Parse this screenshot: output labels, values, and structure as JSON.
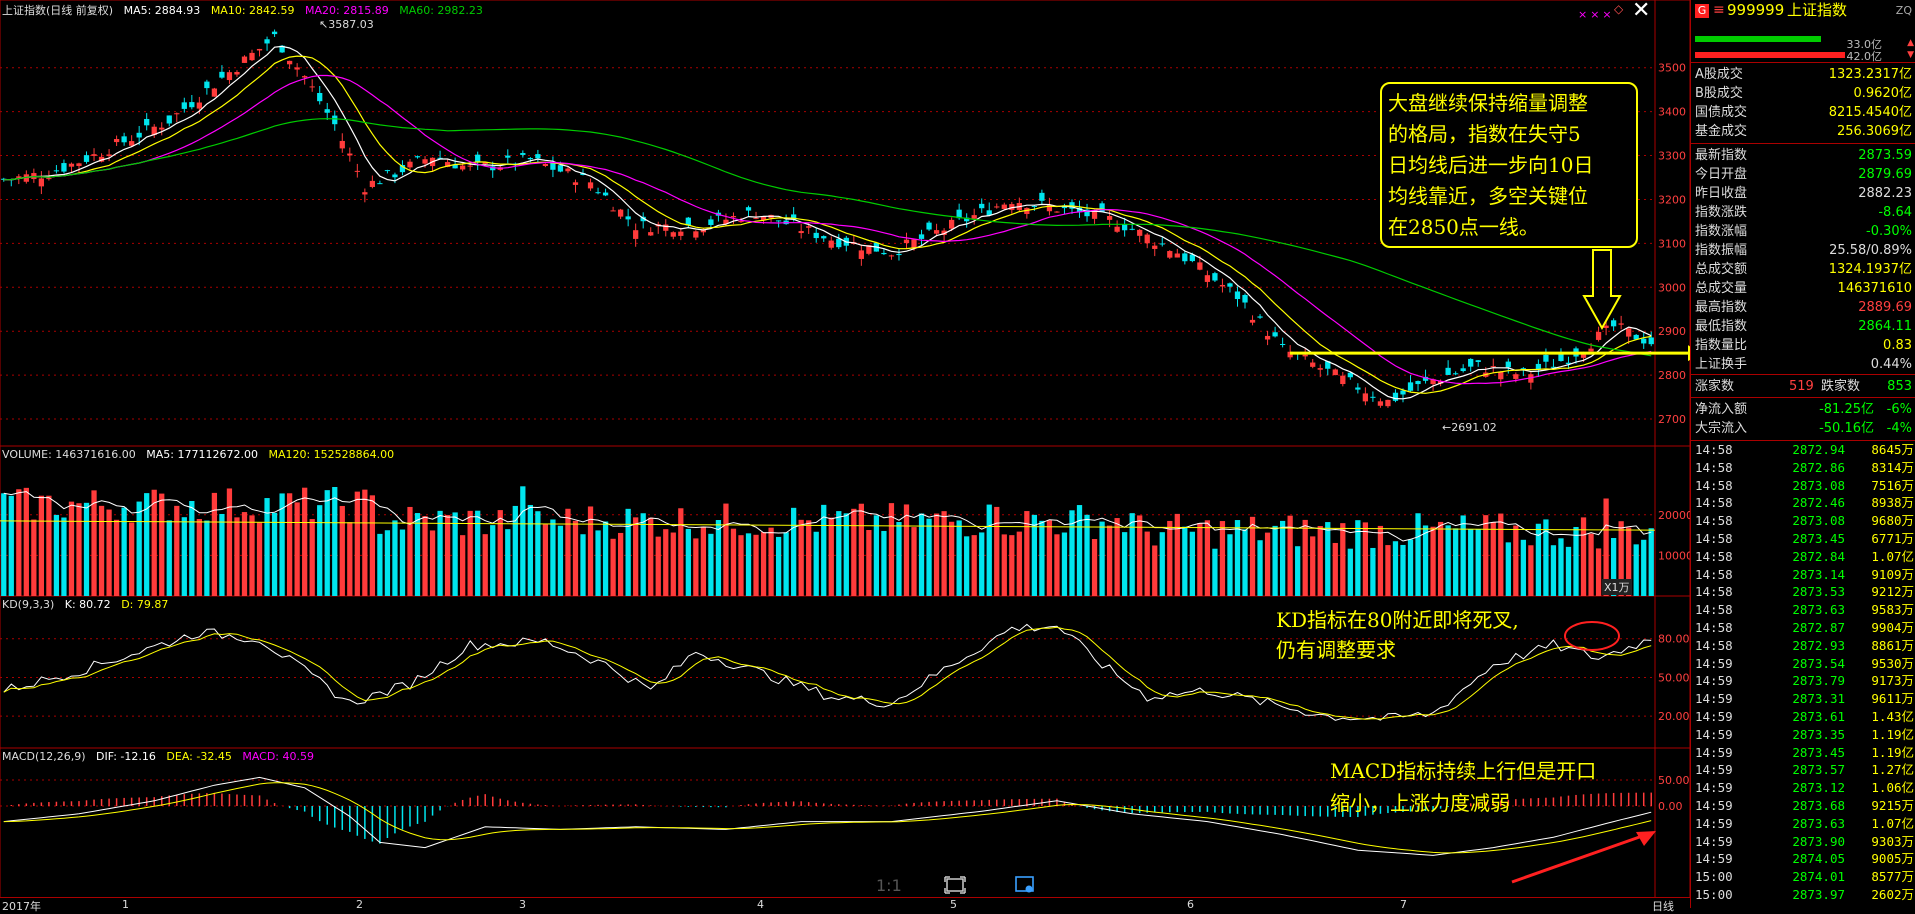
{
  "main_info": {
    "name": "上证指数(日线 前复权)",
    "ma5": "MA5: 2884.93",
    "ma10": "MA10: 2842.59",
    "ma20": "MA20: 2815.89",
    "ma60": "MA60: 2982.23"
  },
  "volume_info": {
    "volume": "VOLUME: 146371616.00",
    "ma5": "MA5: 177112672.00",
    "ma120": "MA120: 152528864.00",
    "unit": "X1万"
  },
  "kd_info": {
    "name": "KD(9,3,3)",
    "k": "K: 80.72",
    "d": "D: 79.87"
  },
  "macd_info": {
    "name": "MACD(12,26,9)",
    "dif": "DIF: -12.16",
    "dea": "DEA: -32.45",
    "macd": "MACD: 40.59"
  },
  "price_axis": [
    "3500",
    "3400",
    "3300",
    "3200",
    "3100",
    "3000",
    "2900",
    "2800",
    "2700"
  ],
  "volume_axis": [
    "20000",
    "10000"
  ],
  "kd_axis": [
    "80.00",
    "50.00",
    "20.00"
  ],
  "macd_axis": [
    "50.00",
    "0.00"
  ],
  "annotations": {
    "high": "3587.03",
    "low": "2691.02",
    "callout_main": [
      "大盘继续保持缩量调整",
      "的格局，指数在失守5",
      "日均线后进一步向10日",
      "均线靠近，多空关键位",
      "在2850点一线。"
    ],
    "callout_kd": [
      "KD指标在80附近即将死叉,",
      "仍有调整要求"
    ],
    "callout_macd": [
      "MACD指标持续上行但是开口",
      "缩小，上涨力度减弱"
    ]
  },
  "bottom_axis": {
    "dates": [
      "2017年",
      "1",
      "2",
      "3",
      "4",
      "5",
      "6",
      "7"
    ],
    "right": "日线",
    "zoom": "1:1"
  },
  "panel": {
    "badge": "G",
    "code": "999999",
    "name": "上证指数",
    "tag": "ZQ",
    "bar_values": [
      "33.0亿",
      "42.0亿"
    ],
    "turnover": [
      {
        "label": "A股成交",
        "value": "1323.2317亿"
      },
      {
        "label": "B股成交",
        "value": "0.9620亿"
      },
      {
        "label": "国债成交",
        "value": "8215.4540亿"
      },
      {
        "label": "基金成交",
        "value": "256.3069亿"
      }
    ],
    "stats": [
      {
        "label": "最新指数",
        "value": "2873.59",
        "color": "#00ff00"
      },
      {
        "label": "今日开盘",
        "value": "2879.69",
        "color": "#00ff00"
      },
      {
        "label": "昨日收盘",
        "value": "2882.23",
        "color": "#dddddd"
      },
      {
        "label": "指数涨跌",
        "value": "-8.64",
        "color": "#00ff00"
      },
      {
        "label": "指数涨幅",
        "value": "-0.30%",
        "color": "#00ff00"
      },
      {
        "label": "指数振幅",
        "value": "25.58/0.89%",
        "color": "#dddddd"
      },
      {
        "label": "总成交额",
        "value": "1324.1937亿",
        "color": "#ffff00"
      },
      {
        "label": "总成交量",
        "value": "146371610",
        "color": "#ffff00"
      },
      {
        "label": "最高指数",
        "value": "2889.69",
        "color": "#ff4040"
      },
      {
        "label": "最低指数",
        "value": "2864.11",
        "color": "#00ff00"
      },
      {
        "label": "指数量比",
        "value": "0.83",
        "color": "#ffff00"
      },
      {
        "label": "上证换手",
        "value": "0.44%",
        "color": "#dddddd"
      }
    ],
    "breadth": {
      "up_label": "涨家数",
      "up_value": "519",
      "down_label": "跌家数",
      "down_value": "853"
    },
    "flows": [
      {
        "label": "净流入额",
        "value": "-81.25亿",
        "pct": "-6%"
      },
      {
        "label": "大宗流入",
        "value": "-50.16亿",
        "pct": "-4%"
      }
    ],
    "ticks": [
      {
        "time": "14:58",
        "price": "2872.94",
        "vol": "8645万"
      },
      {
        "time": "14:58",
        "price": "2872.86",
        "vol": "8314万"
      },
      {
        "time": "14:58",
        "price": "2873.08",
        "vol": "7516万"
      },
      {
        "time": "14:58",
        "price": "2872.46",
        "vol": "8938万"
      },
      {
        "time": "14:58",
        "price": "2873.08",
        "vol": "9680万"
      },
      {
        "time": "14:58",
        "price": "2873.45",
        "vol": "6771万"
      },
      {
        "time": "14:58",
        "price": "2872.84",
        "vol": "1.07亿"
      },
      {
        "time": "14:58",
        "price": "2873.14",
        "vol": "9109万"
      },
      {
        "time": "14:58",
        "price": "2873.53",
        "vol": "9212万"
      },
      {
        "time": "14:58",
        "price": "2873.63",
        "vol": "9583万"
      },
      {
        "time": "14:58",
        "price": "2872.87",
        "vol": "9904万"
      },
      {
        "time": "14:58",
        "price": "2872.93",
        "vol": "8861万"
      },
      {
        "time": "14:59",
        "price": "2873.54",
        "vol": "9530万"
      },
      {
        "time": "14:59",
        "price": "2873.79",
        "vol": "9173万"
      },
      {
        "time": "14:59",
        "price": "2873.31",
        "vol": "9611万"
      },
      {
        "time": "14:59",
        "price": "2873.61",
        "vol": "1.43亿"
      },
      {
        "time": "14:59",
        "price": "2873.35",
        "vol": "1.19亿"
      },
      {
        "time": "14:59",
        "price": "2873.45",
        "vol": "1.19亿"
      },
      {
        "time": "14:59",
        "price": "2873.57",
        "vol": "1.27亿"
      },
      {
        "time": "14:59",
        "price": "2873.12",
        "vol": "1.06亿"
      },
      {
        "time": "14:59",
        "price": "2873.68",
        "vol": "9215万"
      },
      {
        "time": "14:59",
        "price": "2873.63",
        "vol": "1.07亿"
      },
      {
        "time": "14:59",
        "price": "2873.90",
        "vol": "9303万"
      },
      {
        "time": "14:59",
        "price": "2874.05",
        "vol": "9005万"
      },
      {
        "time": "15:00",
        "price": "2874.01",
        "vol": "8577万"
      },
      {
        "time": "15:00",
        "price": "2873.97",
        "vol": "2602万"
      }
    ]
  },
  "colors": {
    "up": "#ff3b3b",
    "down": "#00e5ee",
    "ma5": "#ffffff",
    "ma10": "#ffff00",
    "ma20": "#ff00ff",
    "ma60": "#00cc00",
    "grid": "#aa0000"
  }
}
